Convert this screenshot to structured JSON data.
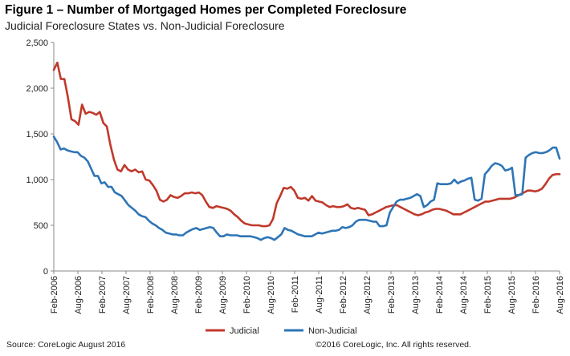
{
  "figure_title": "Figure 1 – Number of Mortgaged Homes per Completed Foreclosure",
  "subtitle": "Judicial Foreclosure States vs. Non-Judicial Foreclosure",
  "source": "Source: CoreLogic  August 2016",
  "copyright": "©2016 CoreLogic, Inc. All rights reserved.",
  "chart_data": {
    "type": "line",
    "title": "Figure 1 – Number of Mortgaged Homes per Completed Foreclosure",
    "subtitle": "Judicial Foreclosure States vs. Non-Judicial Foreclosure",
    "x_start": "Feb-2006",
    "x_end": "Aug-2016",
    "x_ticks": [
      "Feb-2006",
      "Aug-2006",
      "Feb-2007",
      "Aug-2007",
      "Feb-2008",
      "Aug-2008",
      "Feb-2009",
      "Aug-2009",
      "Feb-2010",
      "Aug-2010",
      "Feb-2011",
      "Aug-2011",
      "Feb-2012",
      "Aug-2012",
      "Feb-2013",
      "Aug-2013",
      "Feb-2014",
      "Aug-2014",
      "Feb-2015",
      "Aug-2015",
      "Feb-2016",
      "Aug-2016"
    ],
    "y_ticks": [
      "0",
      "500",
      "1,000",
      "1,500",
      "2,000",
      "2,500"
    ],
    "ylim": [
      0,
      2500
    ],
    "grid": false,
    "legend_position": "bottom",
    "series": [
      {
        "name": "Judicial",
        "color": "#c0392b",
        "values": [
          2200,
          2280,
          2100,
          2100,
          1900,
          1660,
          1640,
          1600,
          1820,
          1720,
          1740,
          1730,
          1710,
          1740,
          1620,
          1580,
          1380,
          1220,
          1110,
          1090,
          1160,
          1110,
          1090,
          1110,
          1080,
          1090,
          1000,
          990,
          940,
          880,
          780,
          760,
          780,
          830,
          810,
          800,
          820,
          850,
          850,
          860,
          850,
          860,
          830,
          760,
          700,
          690,
          710,
          700,
          690,
          680,
          660,
          620,
          590,
          550,
          520,
          510,
          500,
          500,
          500,
          490,
          490,
          500,
          570,
          740,
          820,
          910,
          900,
          920,
          880,
          800,
          790,
          800,
          770,
          820,
          770,
          760,
          750,
          720,
          700,
          710,
          700,
          700,
          710,
          730,
          690,
          680,
          690,
          680,
          670,
          610,
          620,
          640,
          660,
          680,
          700,
          710,
          720,
          720,
          700,
          680,
          660,
          640,
          620,
          610,
          620,
          640,
          650,
          670,
          680,
          680,
          670,
          660,
          640,
          620,
          620,
          620,
          640,
          660,
          680,
          700,
          720,
          740,
          760,
          760,
          770,
          780,
          790,
          790,
          790,
          790,
          800,
          820,
          840,
          860,
          880,
          880,
          870,
          880,
          900,
          950,
          1010,
          1050,
          1060,
          1060
        ]
      },
      {
        "name": "Non-Judicial",
        "color": "#2e75b6",
        "values": [
          1470,
          1410,
          1330,
          1340,
          1320,
          1310,
          1300,
          1300,
          1260,
          1240,
          1200,
          1120,
          1040,
          1040,
          960,
          970,
          920,
          920,
          860,
          840,
          820,
          770,
          720,
          690,
          660,
          620,
          600,
          590,
          550,
          520,
          500,
          470,
          450,
          420,
          410,
          400,
          400,
          390,
          390,
          420,
          440,
          460,
          470,
          450,
          460,
          470,
          480,
          470,
          420,
          380,
          380,
          400,
          390,
          390,
          390,
          380,
          380,
          380,
          380,
          370,
          360,
          340,
          360,
          370,
          360,
          340,
          370,
          400,
          470,
          450,
          440,
          420,
          400,
          390,
          380,
          380,
          380,
          400,
          420,
          410,
          420,
          430,
          440,
          440,
          450,
          480,
          470,
          480,
          500,
          540,
          560,
          560,
          560,
          550,
          540,
          540,
          490,
          490,
          500,
          640,
          700,
          760,
          780,
          780,
          790,
          800,
          820,
          840,
          820,
          700,
          720,
          760,
          780,
          960,
          950,
          950,
          950,
          960,
          1000,
          960,
          980,
          990,
          1010,
          1020,
          780,
          770,
          790,
          1060,
          1100,
          1150,
          1180,
          1170,
          1150,
          1100,
          1110,
          1130,
          830,
          830,
          840,
          1240,
          1270,
          1290,
          1300,
          1290,
          1290,
          1300,
          1320,
          1350,
          1350,
          1230
        ]
      }
    ]
  }
}
